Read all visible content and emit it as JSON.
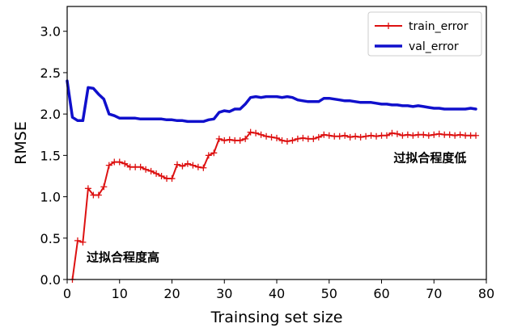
{
  "chart_data": {
    "type": "line",
    "title": "",
    "xlabel": "Trainsing set size",
    "ylabel": "RMSE",
    "xlim": [
      0,
      80
    ],
    "ylim": [
      0.0,
      3.3
    ],
    "x_ticks": [
      0,
      10,
      20,
      30,
      40,
      50,
      60,
      70,
      80
    ],
    "y_ticks": [
      0.0,
      0.5,
      1.0,
      1.5,
      2.0,
      2.5,
      3.0
    ],
    "x_tick_labels": [
      "0",
      "10",
      "20",
      "30",
      "40",
      "50",
      "60",
      "70",
      "80"
    ],
    "y_tick_labels": [
      "0.0",
      "0.5",
      "1.0",
      "1.5",
      "2.0",
      "2.5",
      "3.0"
    ],
    "grid": false,
    "legend_position": "top-right",
    "series": [
      {
        "name": "train_error",
        "color": "#dd1111",
        "marker": "plus",
        "x": [
          1,
          2,
          3,
          4,
          5,
          6,
          7,
          8,
          9,
          10,
          11,
          12,
          13,
          14,
          15,
          16,
          17,
          18,
          19,
          20,
          21,
          22,
          23,
          24,
          25,
          26,
          27,
          28,
          29,
          30,
          31,
          32,
          33,
          34,
          35,
          36,
          37,
          38,
          39,
          40,
          41,
          42,
          43,
          44,
          45,
          46,
          47,
          48,
          49,
          50,
          51,
          52,
          53,
          54,
          55,
          56,
          57,
          58,
          59,
          60,
          61,
          62,
          63,
          64,
          65,
          66,
          67,
          68,
          69,
          70,
          71,
          72,
          73,
          74,
          75,
          76,
          77,
          78
        ],
        "y": [
          0.0,
          0.47,
          0.45,
          1.1,
          1.02,
          1.02,
          1.12,
          1.38,
          1.42,
          1.42,
          1.4,
          1.36,
          1.36,
          1.36,
          1.33,
          1.31,
          1.28,
          1.25,
          1.22,
          1.22,
          1.39,
          1.37,
          1.4,
          1.38,
          1.36,
          1.35,
          1.5,
          1.53,
          1.7,
          1.68,
          1.69,
          1.68,
          1.68,
          1.7,
          1.78,
          1.77,
          1.75,
          1.73,
          1.72,
          1.71,
          1.68,
          1.67,
          1.68,
          1.7,
          1.71,
          1.7,
          1.7,
          1.72,
          1.75,
          1.74,
          1.73,
          1.73,
          1.74,
          1.72,
          1.73,
          1.72,
          1.73,
          1.74,
          1.73,
          1.74,
          1.74,
          1.77,
          1.76,
          1.74,
          1.75,
          1.74,
          1.75,
          1.75,
          1.74,
          1.75,
          1.76,
          1.75,
          1.75,
          1.74,
          1.75,
          1.74,
          1.74,
          1.74
        ]
      },
      {
        "name": "val_error",
        "color": "#1010cc",
        "marker": "none",
        "x": [
          0,
          1,
          2,
          3,
          4,
          5,
          6,
          7,
          8,
          9,
          10,
          11,
          12,
          13,
          14,
          15,
          16,
          17,
          18,
          19,
          20,
          21,
          22,
          23,
          24,
          25,
          26,
          27,
          28,
          29,
          30,
          31,
          32,
          33,
          34,
          35,
          36,
          37,
          38,
          39,
          40,
          41,
          42,
          43,
          44,
          45,
          46,
          47,
          48,
          49,
          50,
          51,
          52,
          53,
          54,
          55,
          56,
          57,
          58,
          59,
          60,
          61,
          62,
          63,
          64,
          65,
          66,
          67,
          68,
          69,
          70,
          71,
          72,
          73,
          74,
          75,
          76,
          77,
          78
        ],
        "y": [
          2.4,
          1.96,
          1.92,
          1.92,
          2.32,
          2.31,
          2.24,
          2.18,
          2.0,
          1.98,
          1.95,
          1.95,
          1.95,
          1.95,
          1.94,
          1.94,
          1.94,
          1.94,
          1.94,
          1.93,
          1.93,
          1.92,
          1.92,
          1.91,
          1.91,
          1.91,
          1.91,
          1.93,
          1.94,
          2.02,
          2.04,
          2.03,
          2.06,
          2.06,
          2.12,
          2.2,
          2.21,
          2.2,
          2.21,
          2.21,
          2.21,
          2.2,
          2.21,
          2.2,
          2.17,
          2.16,
          2.15,
          2.15,
          2.15,
          2.19,
          2.19,
          2.18,
          2.17,
          2.16,
          2.16,
          2.15,
          2.14,
          2.14,
          2.14,
          2.13,
          2.12,
          2.12,
          2.11,
          2.11,
          2.1,
          2.1,
          2.09,
          2.1,
          2.09,
          2.08,
          2.07,
          2.07,
          2.06,
          2.06,
          2.06,
          2.06,
          2.06,
          2.07,
          2.06
        ]
      }
    ],
    "annotations": [
      {
        "text": "过拟合程度高",
        "x": 3.7,
        "y": 0.22
      },
      {
        "text": "过拟合程度低",
        "x": 62.3,
        "y": 1.42
      }
    ]
  }
}
